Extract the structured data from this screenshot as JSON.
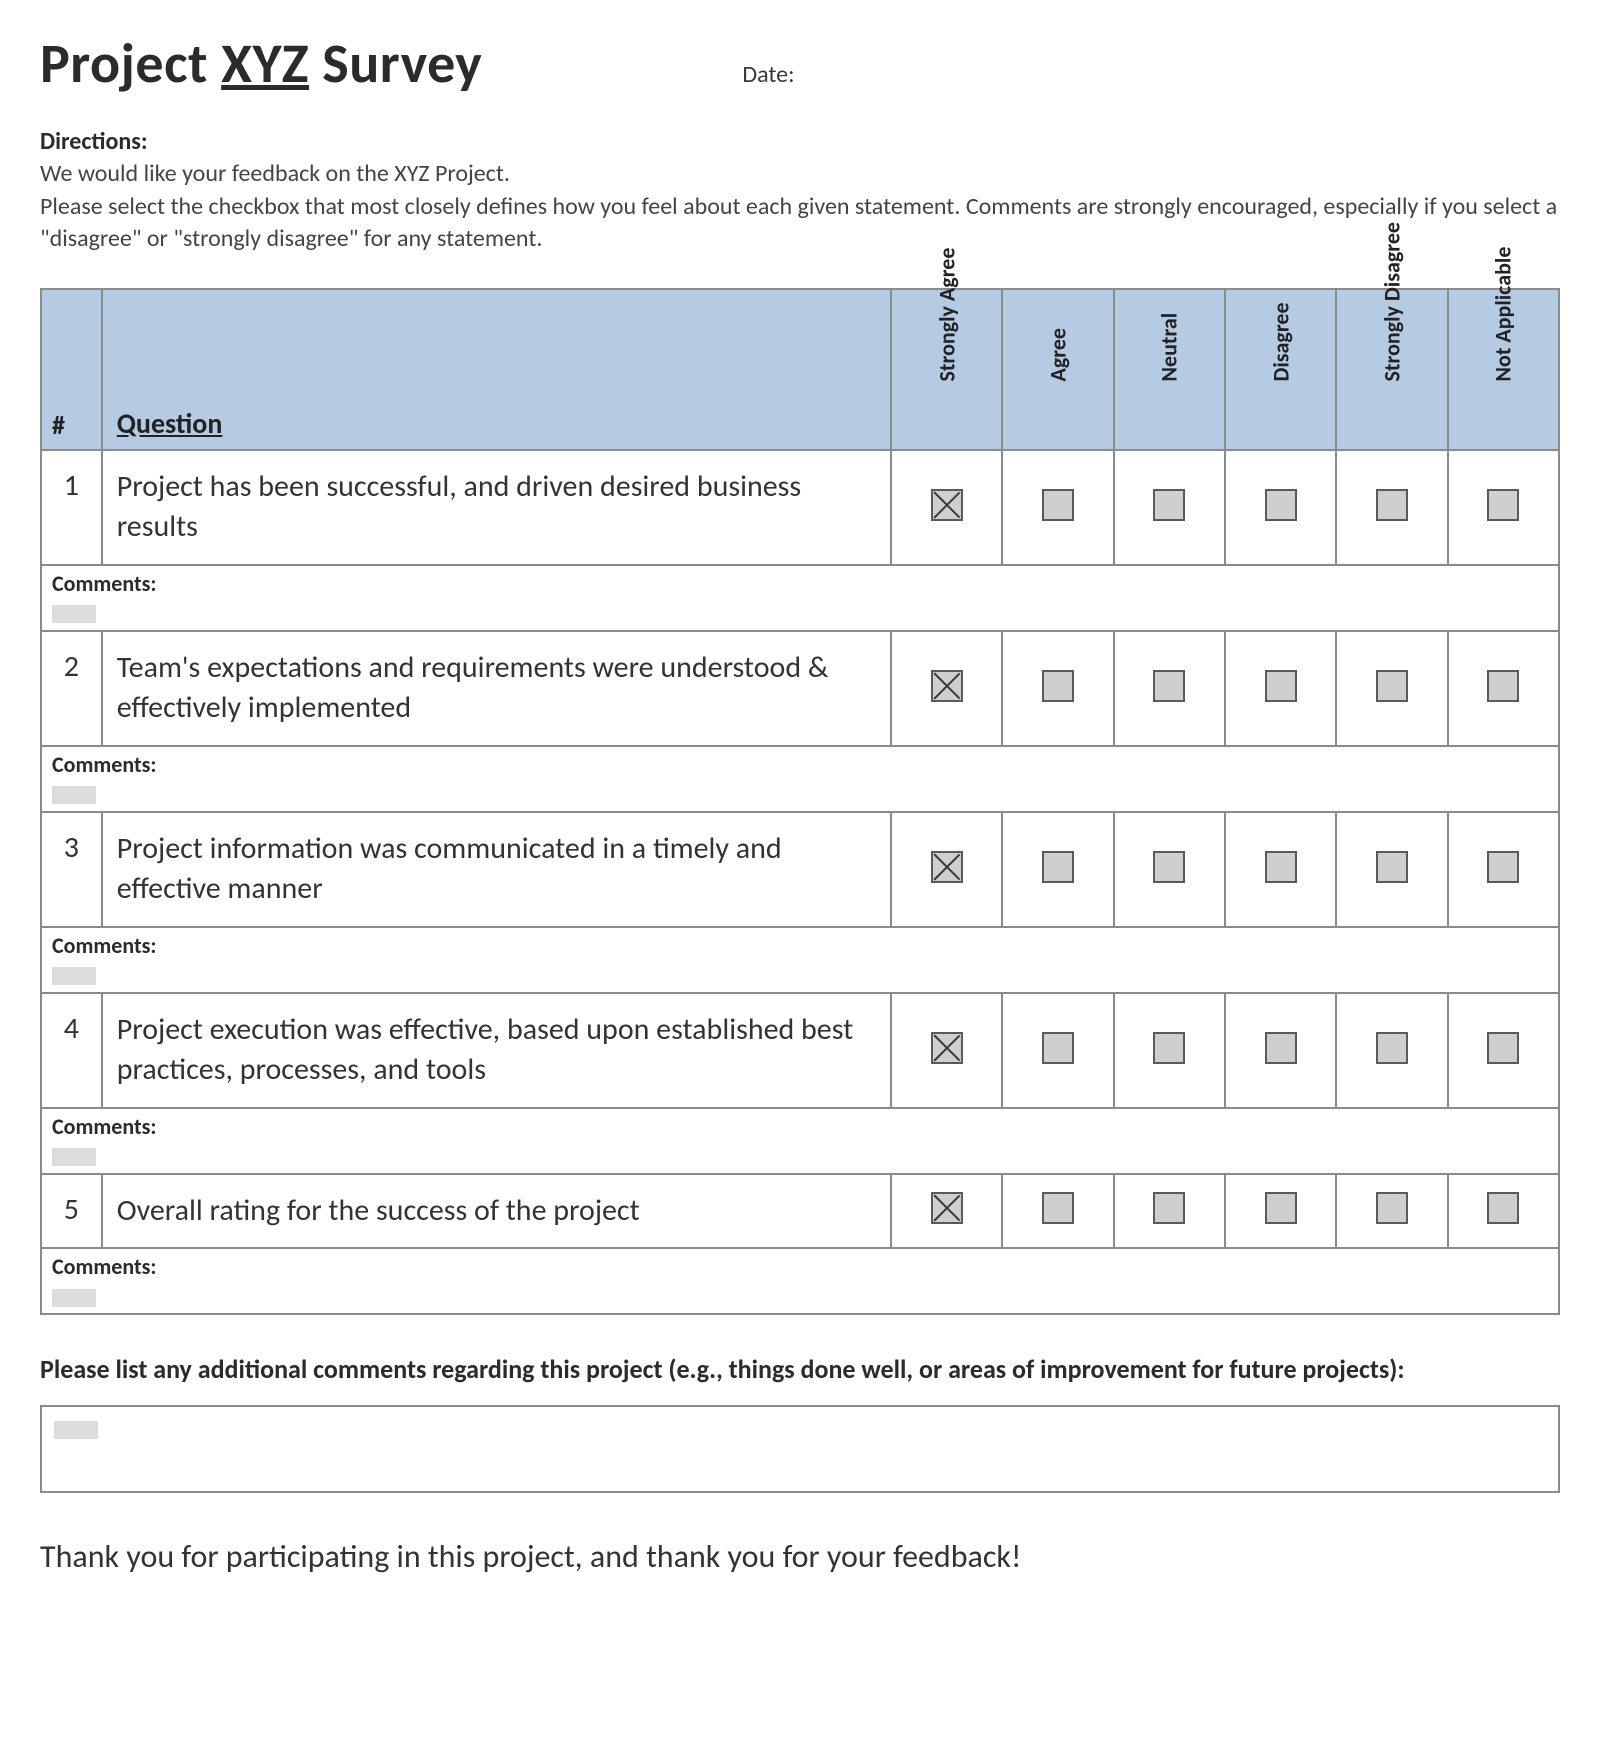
{
  "title": {
    "prefix": "Project ",
    "underlined": "XYZ",
    "suffix": " Survey"
  },
  "date_label": "Date:",
  "directions": {
    "heading": "Directions:",
    "line1": "We would like your feedback on the XYZ Project.",
    "line2": "Please select the checkbox that most closely defines how you feel about each given statement. Comments are strongly encouraged, especially if you select a \"disagree\" or \"strongly disagree\" for any statement."
  },
  "table": {
    "header_bg": "#b5cbe4",
    "border_color": "#8b8b8b",
    "checkbox_fill": "#cfcfcf",
    "checkbox_border": "#5a5a5a",
    "columns": {
      "num": "#",
      "question": "Question",
      "options": [
        "Strongly Agree",
        "Agree",
        "Neutral",
        "Disagree",
        "Strongly Disagree",
        "Not Applicable"
      ]
    },
    "comments_label": "Comments:",
    "rows": [
      {
        "num": "1",
        "question": "Project has been successful, and driven desired business results",
        "checked_index": 0
      },
      {
        "num": "2",
        "question": "Team's expectations and requirements were understood & effectively implemented",
        "checked_index": 0
      },
      {
        "num": "3",
        "question": "Project information was communicated in a timely and effective manner",
        "checked_index": 0
      },
      {
        "num": "4",
        "question": "Project execution was effective, based upon established best practices, processes, and tools",
        "checked_index": 0
      },
      {
        "num": "5",
        "question": "Overall rating for the success of the project",
        "checked_index": 0
      }
    ]
  },
  "additional_comments_prompt": "Please list any additional comments regarding this project (e.g., things done well, or areas of improvement for future projects):",
  "thank_you": "Thank you for participating in this project, and thank you for your feedback!",
  "typography": {
    "title_fontsize": 56,
    "body_fontsize": 24,
    "question_fontsize": 30,
    "thanks_fontsize": 32
  }
}
